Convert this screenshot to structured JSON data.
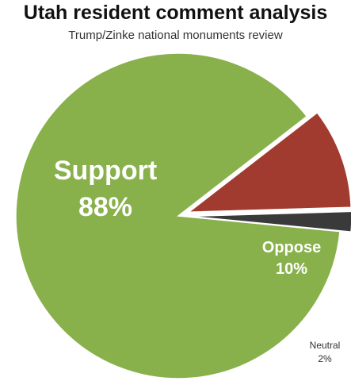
{
  "chart_data": {
    "type": "pie",
    "title": "Utah resident comment analysis",
    "subtitle": "Trump/Zinke national monuments review",
    "slices": [
      {
        "label": "Support",
        "value": 88,
        "pct_label": "88%",
        "color": "#88b04b"
      },
      {
        "label": "Oppose",
        "value": 10,
        "pct_label": "10%",
        "color": "#a23b2f"
      },
      {
        "label": "Neutral",
        "value": 2,
        "pct_label": "2%",
        "color": "#3a3a3a"
      }
    ]
  }
}
